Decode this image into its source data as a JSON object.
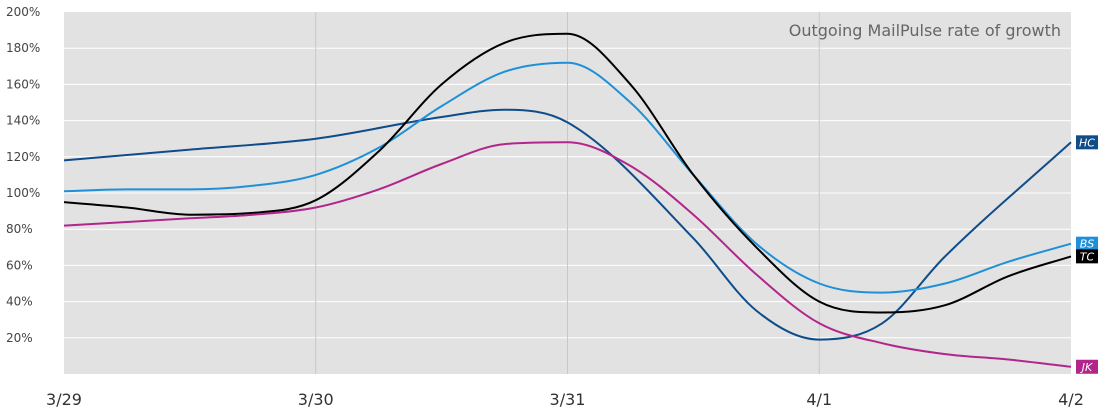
{
  "chart_data": {
    "type": "line",
    "title": "Outgoing MailPulse rate of growth",
    "xlabel": "",
    "ylabel": "",
    "categories": [
      "3/29",
      "3/30",
      "3/31",
      "4/1",
      "4/2"
    ],
    "ylim": [
      0,
      200
    ],
    "y_ticks": [
      20,
      40,
      60,
      80,
      100,
      120,
      140,
      160,
      180,
      200
    ],
    "y_tick_suffix": "%",
    "grid": true,
    "series": [
      {
        "name": "HC",
        "color": "#0f4c8a",
        "x": [
          0,
          0.5,
          1,
          1.5,
          1.75,
          2,
          2.5,
          2.75,
          3,
          3.25,
          3.5,
          4
        ],
        "values": [
          118,
          124,
          130,
          142,
          146,
          139,
          75,
          35,
          19,
          28,
          65,
          128
        ]
      },
      {
        "name": "BS",
        "color": "#1e90d8",
        "x": [
          0,
          0.25,
          0.5,
          0.75,
          1,
          1.25,
          1.5,
          1.75,
          2,
          2.25,
          2.5,
          2.75,
          3,
          3.25,
          3.5,
          3.75,
          4
        ],
        "values": [
          101,
          102,
          102,
          104,
          110,
          125,
          148,
          167,
          172,
          150,
          110,
          72,
          50,
          45,
          50,
          62,
          72
        ]
      },
      {
        "name": "TC",
        "color": "#000000",
        "x": [
          0,
          0.25,
          0.5,
          0.75,
          1,
          1.25,
          1.5,
          1.75,
          2,
          2.25,
          2.5,
          2.75,
          3,
          3.25,
          3.5,
          3.75,
          4
        ],
        "values": [
          95,
          92,
          88,
          89,
          96,
          123,
          160,
          183,
          188,
          160,
          110,
          70,
          40,
          34,
          38,
          54,
          65
        ]
      },
      {
        "name": "JK",
        "color": "#b2268b",
        "x": [
          0,
          0.25,
          0.5,
          0.75,
          1,
          1.25,
          1.5,
          1.75,
          2,
          2.25,
          2.5,
          2.75,
          3,
          3.25,
          3.5,
          3.75,
          4
        ],
        "values": [
          82,
          84,
          86,
          88,
          92,
          102,
          116,
          127,
          128,
          115,
          88,
          55,
          28,
          17,
          11,
          8,
          4
        ]
      }
    ]
  }
}
